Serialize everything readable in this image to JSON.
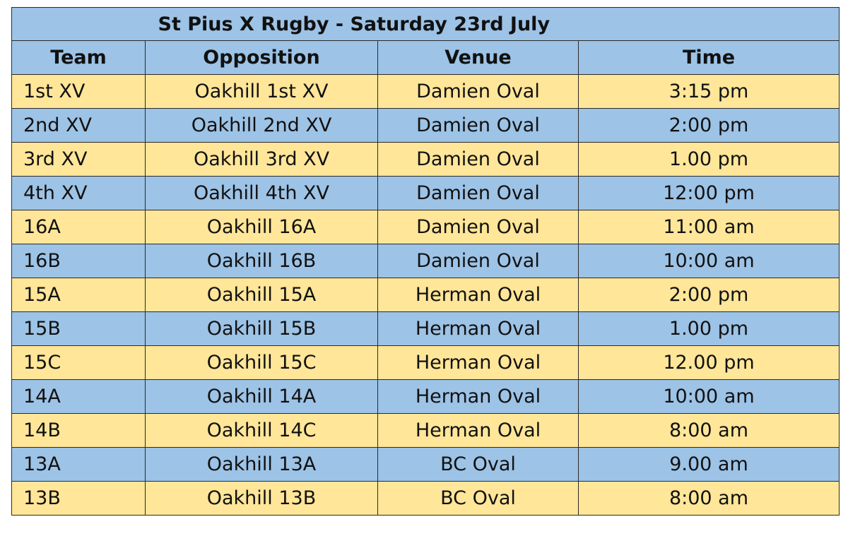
{
  "colors": {
    "blue": "#9dc3e6",
    "yellow": "#ffe699",
    "border": "#2a2a2a"
  },
  "title": "St Pius X Rugby - Saturday 23rd July",
  "headers": [
    "Team",
    "Opposition",
    "Venue",
    "Time"
  ],
  "rows": [
    {
      "team": "1st XV",
      "opposition": "Oakhill 1st XV",
      "venue": "Damien Oval",
      "time": "3:15 pm",
      "color": "yellow"
    },
    {
      "team": "2nd XV",
      "opposition": "Oakhill 2nd XV",
      "venue": "Damien Oval",
      "time": "2:00 pm",
      "color": "blue"
    },
    {
      "team": "3rd XV",
      "opposition": "Oakhill 3rd XV",
      "venue": "Damien Oval",
      "time": "1.00 pm",
      "color": "yellow"
    },
    {
      "team": "4th XV",
      "opposition": "Oakhill 4th XV",
      "venue": "Damien Oval",
      "time": "12:00 pm",
      "color": "blue"
    },
    {
      "team": "16A",
      "opposition": "Oakhill 16A",
      "venue": "Damien Oval",
      "time": "11:00 am",
      "color": "yellow"
    },
    {
      "team": "16B",
      "opposition": "Oakhill 16B",
      "venue": "Damien Oval",
      "time": "10:00 am",
      "color": "blue"
    },
    {
      "team": "15A",
      "opposition": "Oakhill 15A",
      "venue": "Herman Oval",
      "time": "2:00 pm",
      "color": "yellow"
    },
    {
      "team": "15B",
      "opposition": "Oakhill 15B",
      "venue": "Herman Oval",
      "time": "1.00 pm",
      "color": "blue"
    },
    {
      "team": "15C",
      "opposition": "Oakhill 15C",
      "venue": "Herman Oval",
      "time": "12.00 pm",
      "color": "yellow"
    },
    {
      "team": "14A",
      "opposition": "Oakhill 14A",
      "venue": "Herman Oval",
      "time": "10:00 am",
      "color": "blue"
    },
    {
      "team": "14B",
      "opposition": "Oakhill 14C",
      "venue": "Herman Oval",
      "time": "8:00 am",
      "color": "yellow"
    },
    {
      "team": "13A",
      "opposition": "Oakhill 13A",
      "venue": "BC Oval",
      "time": "9.00 am",
      "color": "blue"
    },
    {
      "team": "13B",
      "opposition": "Oakhill 13B",
      "venue": "BC Oval",
      "time": "8:00 am",
      "color": "yellow"
    }
  ]
}
